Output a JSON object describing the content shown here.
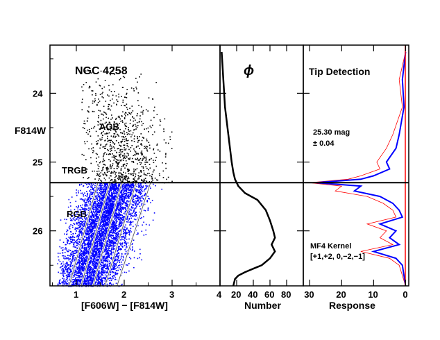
{
  "panels": {
    "cmd": {
      "title": "NGC 4258",
      "xlabel": "[F606W] − [F814W]",
      "ylabel": "F814W",
      "x_ticks": [
        "1",
        "2",
        "3",
        "4"
      ],
      "y_ticks": [
        "24",
        "25",
        "26"
      ],
      "labels": {
        "agb": "AGB",
        "trgb": "TRGB",
        "rgb": "RGB"
      }
    },
    "lf": {
      "title": "ϕ",
      "xlabel": "Number",
      "x_ticks": [
        "20",
        "40",
        "60",
        "80"
      ]
    },
    "tip": {
      "title": "Tip Detection",
      "xlabel": "Response",
      "x_ticks": [
        "30",
        "20",
        "10",
        "0"
      ],
      "tip_mag": "25.30 mag",
      "tip_err": "± 0.04",
      "kernel_label": "MF4 Kernel",
      "kernel_weights": "[+1,+2, 0,−2,−1]"
    }
  },
  "colors": {
    "rgb_points": "#0000ff",
    "agb_points": "#000000",
    "response_main": "#0000ff",
    "response_envelope": "#ff0000",
    "zero_line": "#ff0000"
  },
  "chart_data": [
    {
      "type": "scatter",
      "title": "NGC 4258",
      "xlabel": "[F606W] − [F814W]",
      "ylabel": "F814W",
      "xlim": [
        0.45,
        4.0
      ],
      "ylim": [
        26.8,
        23.3
      ],
      "tip_magnitude": 25.3,
      "series": [
        {
          "name": "AGB",
          "color": "#000000",
          "color_range": [
            1.2,
            3.0
          ],
          "mag_range": [
            23.6,
            25.3
          ]
        },
        {
          "name": "RGB",
          "color": "#0000ff",
          "color_range": [
            0.9,
            2.9
          ],
          "mag_range": [
            25.3,
            26.8
          ]
        }
      ],
      "selection_lines": [
        {
          "x": [
            1.45,
            0.85
          ]
        },
        {
          "x": [
            1.7,
            1.1
          ]
        },
        {
          "x": [
            1.95,
            1.35
          ]
        },
        {
          "x": [
            2.25,
            1.6
          ]
        },
        {
          "x": [
            2.55,
            1.85
          ]
        }
      ]
    },
    {
      "type": "line",
      "title": "ϕ",
      "xlabel": "Number",
      "xlim": [
        0,
        100
      ],
      "ylim": [
        26.8,
        23.3
      ],
      "x": [
        2,
        4,
        6,
        9,
        12,
        14,
        16,
        18,
        22,
        30,
        45,
        55,
        60,
        64,
        66,
        62,
        66,
        60,
        50,
        40,
        30,
        22,
        18,
        17,
        16
      ],
      "y": [
        23.4,
        23.8,
        24.2,
        24.5,
        24.8,
        25.0,
        25.15,
        25.25,
        25.35,
        25.45,
        25.55,
        25.7,
        25.85,
        26.0,
        26.1,
        26.2,
        26.3,
        26.4,
        26.5,
        26.55,
        26.6,
        26.65,
        26.7,
        26.75,
        26.8
      ]
    },
    {
      "type": "line",
      "title": "Tip Detection",
      "xlabel": "Response",
      "xlim": [
        32,
        -1
      ],
      "ylim": [
        26.8,
        23.3
      ],
      "series": [
        {
          "name": "response",
          "color": "#0000ff",
          "x": [
            0,
            1,
            0.5,
            2,
            3,
            6,
            5,
            10,
            14,
            28,
            14,
            16,
            8,
            4,
            2,
            1,
            8,
            3,
            5,
            2,
            10,
            3,
            1,
            0
          ],
          "y": [
            23.4,
            23.8,
            24.2,
            24.6,
            24.8,
            25.0,
            25.1,
            25.2,
            25.25,
            25.3,
            25.35,
            25.42,
            25.5,
            25.6,
            25.7,
            25.8,
            25.9,
            26.0,
            26.1,
            26.2,
            26.3,
            26.4,
            26.5,
            26.8
          ]
        },
        {
          "name": "envelope",
          "color": "#ff0000",
          "x": [
            0,
            2,
            1,
            4,
            6,
            9,
            8,
            14,
            18,
            30,
            20,
            22,
            12,
            7,
            4,
            3,
            12,
            6,
            8,
            4,
            14,
            5,
            2,
            0
          ],
          "y": [
            23.4,
            23.8,
            24.2,
            24.6,
            24.8,
            25.0,
            25.1,
            25.2,
            25.25,
            25.3,
            25.35,
            25.42,
            25.5,
            25.6,
            25.7,
            25.8,
            25.9,
            26.0,
            26.1,
            26.2,
            26.3,
            26.4,
            26.5,
            26.8
          ]
        }
      ]
    }
  ]
}
